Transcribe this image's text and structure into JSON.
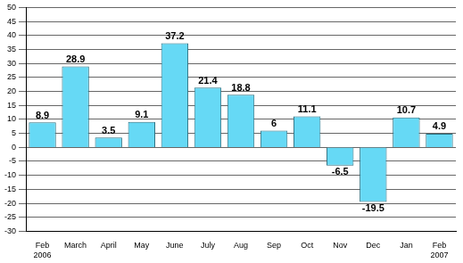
{
  "chart_data": {
    "type": "bar",
    "categories": [
      "Feb 2006",
      "March",
      "April",
      "May",
      "June",
      "July",
      "Aug",
      "Sep",
      "Oct",
      "Nov",
      "Dec",
      "Jan",
      "Feb 2007"
    ],
    "values": [
      8.9,
      28.9,
      3.5,
      9.1,
      37.2,
      21.4,
      18.8,
      6,
      11.1,
      -6.5,
      -19.5,
      10.7,
      4.9
    ],
    "color": "#66d9f5",
    "ylim": [
      -30,
      50
    ],
    "yticks": [
      -30,
      -25,
      -20,
      -15,
      -10,
      -5,
      0,
      5,
      10,
      15,
      20,
      25,
      30,
      35,
      40,
      45,
      50
    ],
    "grid": true,
    "data_labels": true
  }
}
